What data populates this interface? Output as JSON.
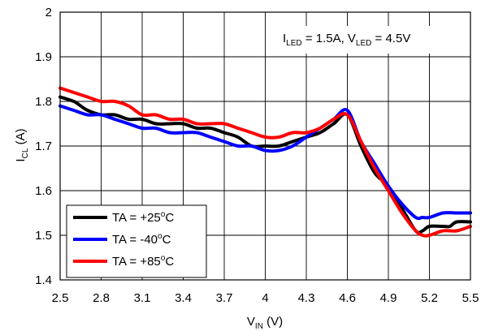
{
  "chart_data": {
    "type": "line",
    "xlabel": {
      "main": "V",
      "sub": "IN",
      "unit": " (V)"
    },
    "ylabel": {
      "main": "I",
      "sub": "CL",
      "unit": " (A)"
    },
    "xlim": [
      2.5,
      5.5
    ],
    "ylim": [
      1.4,
      2.0
    ],
    "xticks": [
      "2.5",
      "2.8",
      "3.1",
      "3.4",
      "3.7",
      "4",
      "4.3",
      "4.6",
      "4.9",
      "5.2",
      "5.5"
    ],
    "yticks": [
      "1.4",
      "1.5",
      "1.6",
      "1.7",
      "1.8",
      "1.9",
      "2"
    ],
    "grid": true,
    "legend_position": "bottom-left",
    "annotation": {
      "parts": [
        {
          "t": "I",
          "sub": false
        },
        {
          "t": "LED",
          "sub": true
        },
        {
          "t": " = 1.5A, V",
          "sub": false
        },
        {
          "t": "LED",
          "sub": true
        },
        {
          "t": " = 4.5V",
          "sub": false
        }
      ]
    },
    "series": [
      {
        "name": {
          "pre": "TA = +25",
          "sup": "o",
          "post": "C"
        },
        "color": "#000000",
        "x": [
          2.5,
          2.6,
          2.65,
          2.7,
          2.8,
          2.9,
          3.0,
          3.1,
          3.2,
          3.3,
          3.4,
          3.5,
          3.6,
          3.7,
          3.8,
          3.9,
          4.0,
          4.1,
          4.2,
          4.3,
          4.4,
          4.5,
          4.6,
          4.7,
          4.8,
          4.9,
          5.0,
          5.1,
          5.15,
          5.2,
          5.3,
          5.35,
          5.4,
          5.5
        ],
        "y": [
          1.81,
          1.8,
          1.79,
          1.78,
          1.77,
          1.77,
          1.76,
          1.76,
          1.75,
          1.75,
          1.75,
          1.74,
          1.74,
          1.73,
          1.72,
          1.7,
          1.7,
          1.7,
          1.71,
          1.72,
          1.73,
          1.75,
          1.77,
          1.7,
          1.64,
          1.61,
          1.56,
          1.51,
          1.51,
          1.52,
          1.52,
          1.52,
          1.53,
          1.53
        ]
      },
      {
        "name": {
          "pre": "TA = -40",
          "sup": "o",
          "post": "C"
        },
        "color": "#0000ff",
        "x": [
          2.5,
          2.6,
          2.7,
          2.8,
          2.9,
          3.0,
          3.1,
          3.2,
          3.3,
          3.4,
          3.5,
          3.6,
          3.7,
          3.8,
          3.9,
          4.0,
          4.1,
          4.2,
          4.3,
          4.4,
          4.5,
          4.6,
          4.7,
          4.8,
          4.9,
          5.0,
          5.1,
          5.15,
          5.2,
          5.3,
          5.4,
          5.5
        ],
        "y": [
          1.79,
          1.78,
          1.77,
          1.77,
          1.76,
          1.75,
          1.74,
          1.74,
          1.73,
          1.73,
          1.73,
          1.72,
          1.71,
          1.7,
          1.7,
          1.69,
          1.69,
          1.7,
          1.72,
          1.74,
          1.76,
          1.78,
          1.71,
          1.66,
          1.61,
          1.57,
          1.54,
          1.54,
          1.54,
          1.55,
          1.55,
          1.55
        ]
      },
      {
        "name": {
          "pre": "TA = +85",
          "sup": "o",
          "post": "C"
        },
        "color": "#ff0000",
        "x": [
          2.5,
          2.6,
          2.7,
          2.8,
          2.9,
          3.0,
          3.1,
          3.2,
          3.3,
          3.4,
          3.5,
          3.6,
          3.7,
          3.8,
          3.9,
          4.0,
          4.1,
          4.2,
          4.3,
          4.4,
          4.5,
          4.6,
          4.7,
          4.8,
          4.9,
          5.0,
          5.1,
          5.15,
          5.2,
          5.3,
          5.4,
          5.5
        ],
        "y": [
          1.83,
          1.82,
          1.81,
          1.8,
          1.8,
          1.79,
          1.77,
          1.77,
          1.76,
          1.76,
          1.75,
          1.75,
          1.75,
          1.74,
          1.73,
          1.72,
          1.72,
          1.73,
          1.73,
          1.74,
          1.76,
          1.77,
          1.71,
          1.65,
          1.6,
          1.55,
          1.51,
          1.5,
          1.5,
          1.51,
          1.51,
          1.52
        ]
      }
    ]
  }
}
